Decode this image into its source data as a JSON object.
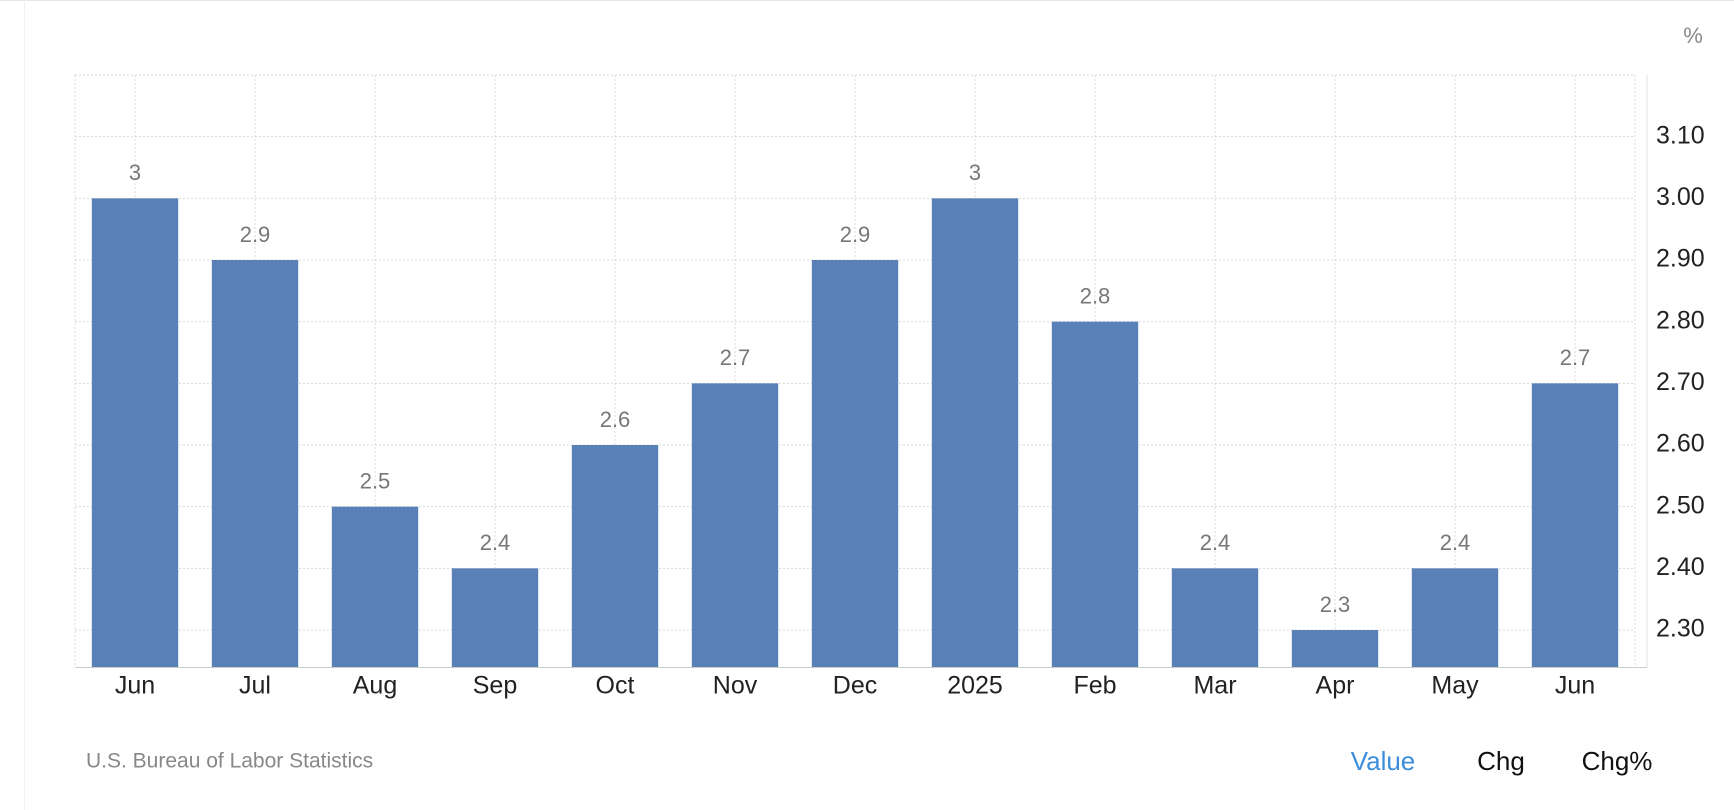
{
  "chart_data": {
    "type": "bar",
    "unit": "%",
    "categories": [
      "Jun",
      "Jul",
      "Aug",
      "Sep",
      "Oct",
      "Nov",
      "Dec",
      "2025",
      "Feb",
      "Mar",
      "Apr",
      "May",
      "Jun"
    ],
    "values": [
      3,
      2.9,
      2.5,
      2.4,
      2.6,
      2.7,
      2.9,
      3,
      2.8,
      2.4,
      2.3,
      2.4,
      2.7
    ],
    "color": "#5a80b8",
    "ylim": [
      2.24,
      3.2
    ],
    "yticks": [
      {
        "value": 2.3,
        "label": "2.30"
      },
      {
        "value": 2.4,
        "label": "2.40"
      },
      {
        "value": 2.5,
        "label": "2.50"
      },
      {
        "value": 2.6,
        "label": "2.60"
      },
      {
        "value": 2.7,
        "label": "2.70"
      },
      {
        "value": 2.8,
        "label": "2.80"
      },
      {
        "value": 2.9,
        "label": "2.90"
      },
      {
        "value": 3.0,
        "label": "3.00"
      },
      {
        "value": 3.1,
        "label": "3.10"
      }
    ],
    "grid": true,
    "source": "U.S. Bureau of Labor Statistics",
    "controls": [
      "Value",
      "Chg",
      "Chg%"
    ],
    "active_control": "Value"
  }
}
